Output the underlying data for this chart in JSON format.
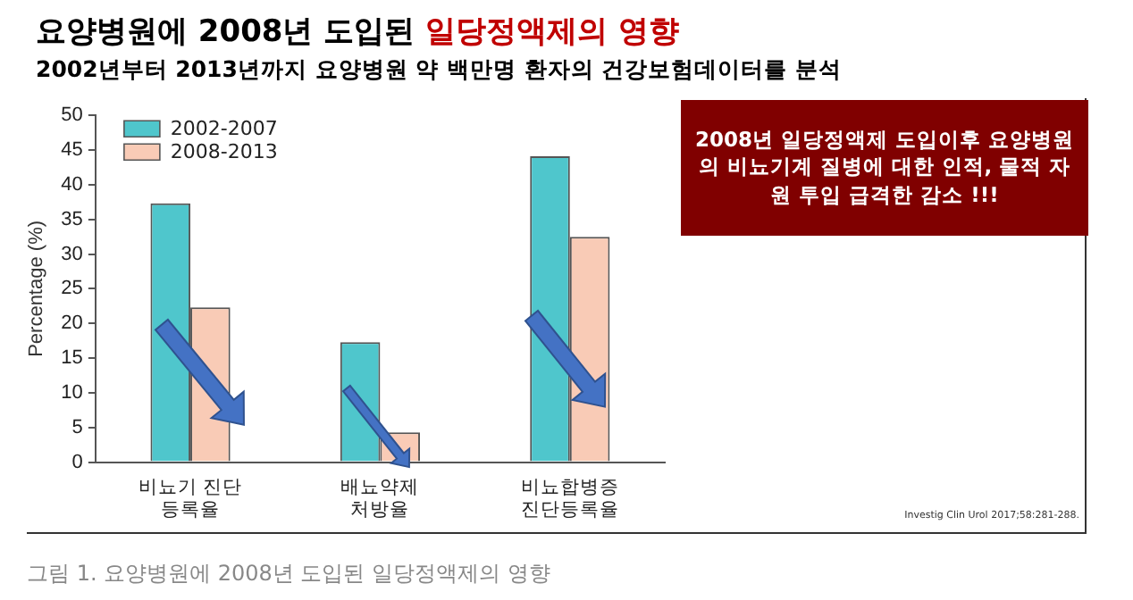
{
  "chart_data": {
    "type": "bar",
    "title": "요양병원에 2008년 도입된 일당정액제의 영향",
    "subtitle": "2002년부터 2013년까지 요양병원 약 백만명 환자의 건강보험데이터를 분석",
    "ylabel": "Percentage (%)",
    "categories": [
      "비뇨기 진단\n등록율",
      "배뇨약제\n처방율",
      "비뇨합병증\n진단등록율"
    ],
    "series": [
      {
        "name": "2002-2007",
        "color": "#4fc6cc",
        "values": [
          37.3,
          17.3,
          44.1
        ]
      },
      {
        "name": "2008-2013",
        "color": "#f9cbb6",
        "values": [
          22.3,
          4.3,
          32.5
        ]
      }
    ],
    "ylim": [
      0,
      50
    ],
    "yticks": [
      0,
      5,
      10,
      15,
      20,
      25,
      30,
      35,
      40,
      45,
      50
    ],
    "grid": false,
    "legend": "top left",
    "annotations": [
      "2008년 일당정액제 도입이후 요양병원의 비뇨기계 질병에 대한 인적, 물적 자원 투입 급격한 감소 !!!",
      "Investig Clin Urol 2017;58:281-288.",
      "그림 1. 요양병원에 2008년 도입된 일당정액제의 영향"
    ]
  }
}
